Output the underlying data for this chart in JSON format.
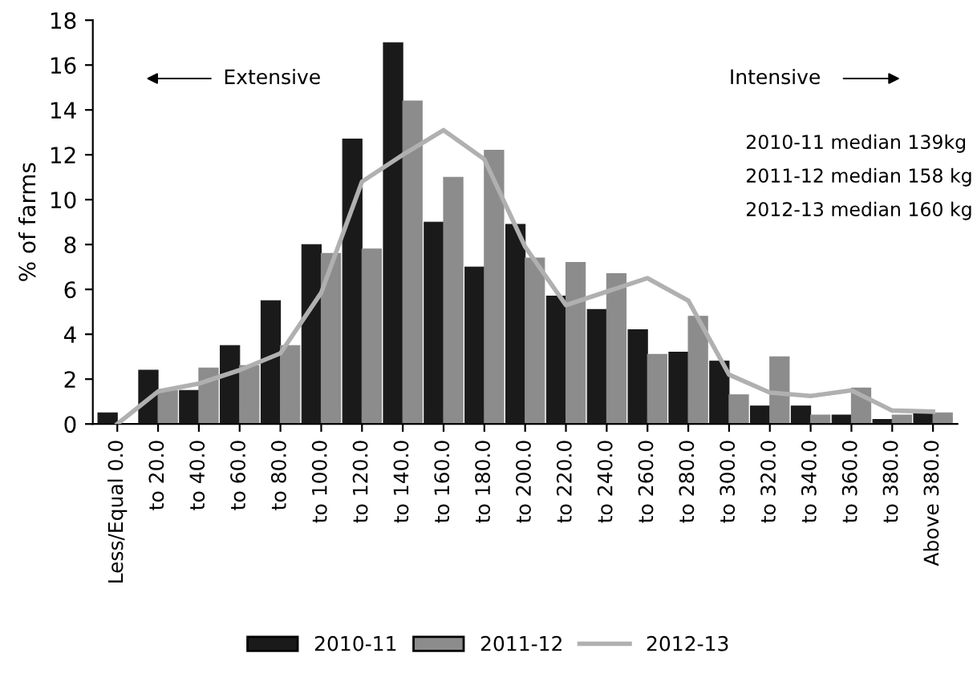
{
  "chart_data": {
    "type": "bar",
    "ylabel": "% of farms",
    "categories": [
      "Less/Equal 0.0",
      "to 20.0",
      "to 40.0",
      "to 60.0",
      "to 80.0",
      "to 100.0",
      "to 120.0",
      "to 140.0",
      "to 160.0",
      "to 180.0",
      "to 200.0",
      "to 220.0",
      "to 240.0",
      "to 260.0",
      "to 280.0",
      "to 300.0",
      "to 320.0",
      "to 340.0",
      "to 360.0",
      "to 380.0",
      "Above 380.0"
    ],
    "series": [
      {
        "name": "2010-11",
        "color": "#1a1a1a",
        "values": [
          0.5,
          2.4,
          1.5,
          3.5,
          5.5,
          8.0,
          12.7,
          17.0,
          9.0,
          7.0,
          8.9,
          5.7,
          5.1,
          4.2,
          3.2,
          2.8,
          0.8,
          0.8,
          0.4,
          0.2,
          0.5
        ]
      },
      {
        "name": "2011-12",
        "color": "#8c8c8c",
        "values": [
          0,
          1.5,
          2.5,
          2.6,
          3.5,
          7.6,
          7.8,
          14.4,
          11.0,
          12.2,
          7.4,
          7.2,
          6.7,
          3.1,
          4.8,
          1.3,
          3.0,
          0.4,
          1.6,
          0.4,
          0.5
        ]
      },
      {
        "name": "2012-13",
        "type": "line",
        "color": "#b0b0b0",
        "values": [
          0,
          1.45,
          1.8,
          2.4,
          3.15,
          5.85,
          10.8,
          12.0,
          13.1,
          11.8,
          7.9,
          5.3,
          5.9,
          6.5,
          5.5,
          2.2,
          1.4,
          1.25,
          1.5,
          0.6,
          0.55
        ]
      }
    ],
    "ylim": [
      0,
      18
    ],
    "yticks": [
      0,
      2,
      4,
      6,
      8,
      10,
      12,
      14,
      16,
      18
    ],
    "grid": false,
    "legend": "bottom",
    "marker": "none",
    "line_style": "solid",
    "annotations": [
      "Extensive",
      "Intensive",
      "2010-11 median 139kg",
      "2011-12 median 158 kg",
      "2012-13 median 160 kg"
    ]
  }
}
